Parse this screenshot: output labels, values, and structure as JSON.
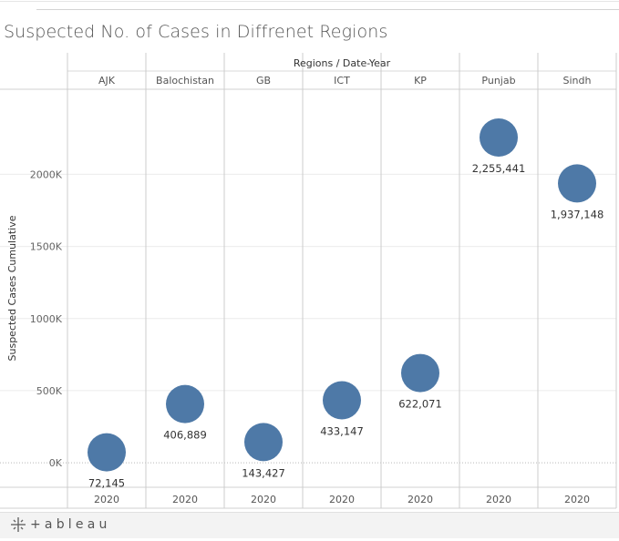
{
  "title": "Suspected No. of Cases in Diffrenet Regions",
  "footer": {
    "brand": "+ableau",
    "brand_icon": "tableau-cross-icon"
  },
  "colors": {
    "mark": "#4e79a7",
    "grid": "#ececec",
    "divider": "#cccccc",
    "text": "#555555"
  },
  "chart_data": {
    "type": "scatter",
    "title": "Suspected No. of Cases in Diffrenet Regions",
    "column_header": "Regions / Date-Year",
    "ylabel": "Suspected Cases Cumulative",
    "categories": [
      "AJK",
      "Balochistan",
      "GB",
      "ICT",
      "KP",
      "Punjab",
      "Sindh"
    ],
    "year_labels": [
      "2020",
      "2020",
      "2020",
      "2020",
      "2020",
      "2020",
      "2020"
    ],
    "values": [
      72145,
      406889,
      143427,
      433147,
      622071,
      2255441,
      1937148
    ],
    "value_labels": [
      "72,145",
      "406,889",
      "143,427",
      "433,147",
      "622,071",
      "2,255,441",
      "1,937,148"
    ],
    "yticks": [
      0,
      500000,
      1000000,
      1500000,
      2000000
    ],
    "ytick_labels": [
      "0K",
      "500K",
      "1000K",
      "1500K",
      "2000K"
    ],
    "ylim": [
      -170000,
      2590000
    ],
    "grid": true,
    "zero_line": "dotted"
  }
}
